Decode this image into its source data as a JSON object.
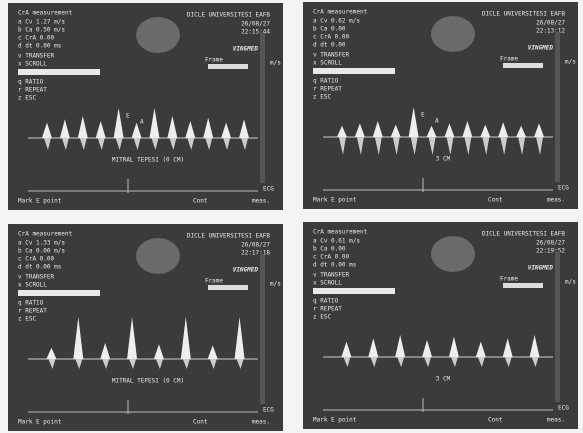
{
  "panels": [
    {
      "title": "CrA measurement",
      "institution": "DICLE UNIVERSITESI EAFB",
      "date": "26/08/27",
      "time": "22:15:44",
      "measurements": [
        "a Cv 1.27 m/s",
        "b Ca 0.50 m/s",
        "c CrA 0.00",
        "d dt 0.00 ms"
      ],
      "menu_top": [
        "v TRANSFER",
        "x SCROLL"
      ],
      "menu_bottom": [
        "q RATIO",
        "r REPEAT",
        "z ESC"
      ],
      "brand": "VINGMED",
      "frame": "Frame",
      "scale_label": "m/s",
      "peak_labels": [
        "E",
        "A"
      ],
      "depth_label": "MITRAL TEPESI (0 CM)",
      "ecg": "ECG",
      "footer_left": "Mark E point",
      "footer_mid": "Cont",
      "footer_right": "meas."
    },
    {
      "title": "CrA measurement",
      "institution": "DICLE UNIVERSITESI EAFB",
      "date": "26/08/27",
      "time": "22:13:12",
      "measurements": [
        "a Cv 0.62 m/s",
        "b Ca 0.00",
        "c CrA 0.00",
        "d dt 0.00"
      ],
      "menu_top": [
        "v TRANSFER",
        "x SCROLL"
      ],
      "menu_bottom": [
        "q RATIO",
        "r REPEAT",
        "z ESC"
      ],
      "brand": "VINGMED",
      "frame": "Frame",
      "scale_label": "m/s",
      "peak_labels": [
        "E",
        "A"
      ],
      "depth_label": "3 CM",
      "ecg": "ECG",
      "footer_left": "Mark E point",
      "footer_mid": "Cont",
      "footer_right": "meas."
    },
    {
      "title": "CrA measurement",
      "institution": "DICLE UNIVERSITESI EAFB",
      "date": "26/08/27",
      "time": "22:17:18",
      "measurements": [
        "a Cv 1.33 m/s",
        "b Ca 0.00 m/s",
        "c CrA 0.00",
        "d dt 0.00 ms"
      ],
      "menu_top": [
        "v TRANSFER",
        "x SCROLL"
      ],
      "menu_bottom": [
        "q RATIO",
        "r REPEAT",
        "z ESC"
      ],
      "brand": "VINGMED",
      "frame": "Frame",
      "scale_label": "m/s",
      "peak_labels": [],
      "depth_label": "MITRAL TEPESI (0 CM)",
      "ecg": "ECG",
      "footer_left": "Mark E point",
      "footer_mid": "Cont",
      "footer_right": "meas."
    },
    {
      "title": "CrA measurement",
      "institution": "DICLE UNIVERSITESI EAFB",
      "date": "26/08/27",
      "time": "22:19:52",
      "measurements": [
        "a Cv 0.61 m/s",
        "b Ca 0.00",
        "c CrA 0.00",
        "d dt 0.00 ms"
      ],
      "menu_top": [
        "v TRANSFER",
        "x SCROLL"
      ],
      "menu_bottom": [
        "q RATIO",
        "r REPEAT",
        "z ESC"
      ],
      "brand": "VINGMED",
      "frame": "Frame",
      "scale_label": "m/s",
      "peak_labels": [],
      "depth_label": "3 CM",
      "ecg": "ECG",
      "footer_left": "Mark E point",
      "footer_mid": "Cont",
      "footer_right": "meas."
    }
  ]
}
